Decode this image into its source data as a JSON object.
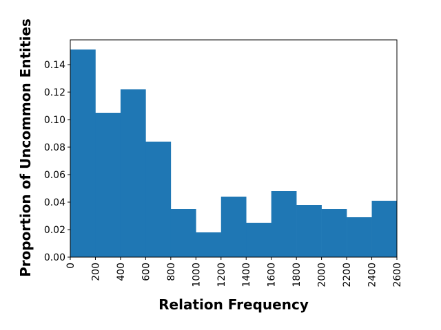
{
  "chart_data": {
    "type": "bar",
    "title": "",
    "xlabel": "Relation Frequency",
    "ylabel": "Proportion of Uncommon Entities",
    "xlim": [
      0,
      2600
    ],
    "ylim": [
      0,
      0.158
    ],
    "bin_width": 200,
    "bins": [
      {
        "x0": 0,
        "x1": 200,
        "value": 0.151
      },
      {
        "x0": 200,
        "x1": 400,
        "value": 0.105
      },
      {
        "x0": 400,
        "x1": 600,
        "value": 0.122
      },
      {
        "x0": 600,
        "x1": 800,
        "value": 0.084
      },
      {
        "x0": 800,
        "x1": 1000,
        "value": 0.035
      },
      {
        "x0": 1000,
        "x1": 1200,
        "value": 0.018
      },
      {
        "x0": 1200,
        "x1": 1400,
        "value": 0.044
      },
      {
        "x0": 1400,
        "x1": 1600,
        "value": 0.025
      },
      {
        "x0": 1600,
        "x1": 1800,
        "value": 0.048
      },
      {
        "x0": 1800,
        "x1": 2000,
        "value": 0.038
      },
      {
        "x0": 2000,
        "x1": 2200,
        "value": 0.035
      },
      {
        "x0": 2200,
        "x1": 2400,
        "value": 0.029
      },
      {
        "x0": 2400,
        "x1": 2600,
        "value": 0.041
      }
    ],
    "x_ticks": [
      "0",
      "200",
      "400",
      "600",
      "800",
      "1000",
      "1200",
      "1400",
      "1600",
      "1800",
      "2000",
      "2200",
      "2400",
      "2600"
    ],
    "y_ticks": [
      "0.00",
      "0.02",
      "0.04",
      "0.06",
      "0.08",
      "0.10",
      "0.12",
      "0.14"
    ],
    "bar_color": "#1f77b4",
    "grid": false,
    "legend": "none"
  }
}
